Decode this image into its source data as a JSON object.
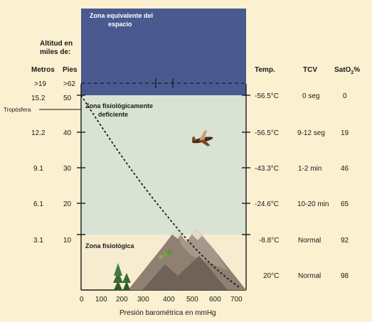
{
  "zones": {
    "space": "Zona equivalente del\nespacio",
    "deficient": "Zona fisiológicamente\ndeficiente",
    "physiologic": "Zona fisiológica"
  },
  "colors": {
    "space": "#4a5a90",
    "deficient": "#d9e3d4",
    "physiologic": "#f7ecd0",
    "background": "#fbf0cf"
  },
  "headers": {
    "altitude": "Altitud en\nmiles de:",
    "meters": "Metros",
    "feet": "Pies",
    "temp": "Temp.",
    "tcv": "TCV",
    "sat": "SatO",
    "sat_sub": "2",
    "sat_suffix": "%"
  },
  "troposphere_label": "Tropósfera",
  "x_axis": {
    "label": "Presión barométrica en mmHg",
    "ticks": [
      "0",
      "100",
      "200",
      "300",
      "400",
      "500",
      "600",
      "700"
    ]
  },
  "rows": [
    {
      "meters": ">19",
      "feet": ">62",
      "temp": "",
      "tcv": "",
      "sat": ""
    },
    {
      "meters": "15.2",
      "feet": "50",
      "temp": "-56.5°C",
      "tcv": "0 seg",
      "sat": "0"
    },
    {
      "meters": "12.2",
      "feet": "40",
      "temp": "-56.5°C",
      "tcv": "9-12 seg",
      "sat": "19"
    },
    {
      "meters": "9.1",
      "feet": "30",
      "temp": "-43.3°C",
      "tcv": "1-2 min",
      "sat": "46"
    },
    {
      "meters": "6.1",
      "feet": "20",
      "temp": "-24.6°C",
      "tcv": "10-20 min",
      "sat": "65"
    },
    {
      "meters": "3.1",
      "feet": "10",
      "temp": "-8.8°C",
      "tcv": "Normal",
      "sat": "92"
    },
    {
      "meters": "",
      "feet": "",
      "temp": "20°C",
      "tcv": "Normal",
      "sat": "98"
    }
  ],
  "icons": [
    "airplane-icon",
    "mountain-icon",
    "pine-tree-icon"
  ]
}
